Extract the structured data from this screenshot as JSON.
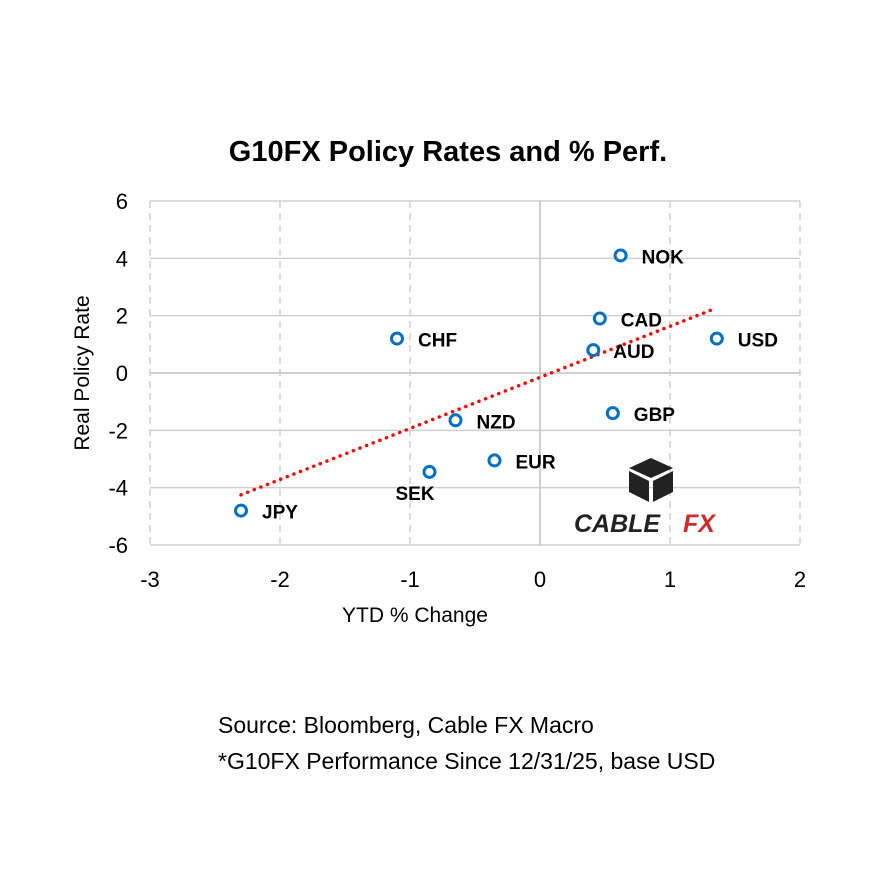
{
  "chart_data": {
    "type": "scatter",
    "title": "G10FX Policy Rates and % Perf.",
    "xlabel": "YTD % Change",
    "ylabel": "Real Policy Rate",
    "xlim": [
      -3,
      2
    ],
    "ylim": [
      -6,
      6
    ],
    "xticks": [
      -3,
      -2,
      -1,
      0,
      1,
      2
    ],
    "yticks": [
      -6,
      -4,
      -2,
      0,
      2,
      4,
      6
    ],
    "grid": true,
    "points": [
      {
        "label": "NOK",
        "x": 0.62,
        "y": 4.1
      },
      {
        "label": "CAD",
        "x": 0.46,
        "y": 1.9
      },
      {
        "label": "AUD",
        "x": 0.41,
        "y": 0.8
      },
      {
        "label": "USD",
        "x": 1.36,
        "y": 1.2
      },
      {
        "label": "GBP",
        "x": 0.56,
        "y": -1.4
      },
      {
        "label": "CHF",
        "x": -1.1,
        "y": 1.2
      },
      {
        "label": "NZD",
        "x": -0.65,
        "y": -1.65
      },
      {
        "label": "EUR",
        "x": -0.35,
        "y": -3.05
      },
      {
        "label": "SEK",
        "x": -0.85,
        "y": -3.45
      },
      {
        "label": "JPY",
        "x": -2.3,
        "y": -4.8
      }
    ],
    "trendline": {
      "style": "dotted",
      "x": [
        -2.3,
        1.32
      ],
      "y": [
        -4.25,
        2.2
      ]
    },
    "colors": {
      "marker": "#0070c0",
      "trendline": "#ff0000",
      "grid": "#d0d0d0"
    }
  },
  "logo": {
    "text1": "CABLE",
    "text2": "FX"
  },
  "source": {
    "line1": "Source: Bloomberg, Cable FX Macro",
    "line2": "*G10FX Performance Since 12/31/25, base USD"
  }
}
